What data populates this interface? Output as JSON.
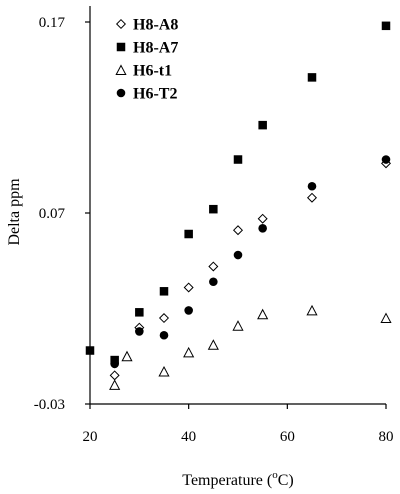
{
  "chart_data": {
    "type": "scatter",
    "title": "",
    "xlabel": "Temperature (°C)",
    "ylabel": "Delta ppm",
    "xlim": [
      20,
      80
    ],
    "ylim": [
      -0.03,
      0.17
    ],
    "xticks": [
      20,
      40,
      60,
      80
    ],
    "yticks": [
      -0.03,
      0.07,
      0.17
    ],
    "x_tick_labels": [
      "20",
      "40",
      "60",
      "80"
    ],
    "y_tick_labels": [
      "-0.03",
      "0.07",
      "0.17"
    ],
    "grid": false,
    "legend_position": "top-left",
    "series": [
      {
        "name": "H8-A8",
        "marker": "open-diamond",
        "points": [
          [
            25,
            -0.015
          ],
          [
            30,
            0.01
          ],
          [
            35,
            0.015
          ],
          [
            40,
            0.031
          ],
          [
            45,
            0.042
          ],
          [
            50,
            0.061
          ],
          [
            55,
            0.067
          ],
          [
            65,
            0.078
          ],
          [
            80,
            0.096
          ]
        ]
      },
      {
        "name": "H8-A7",
        "marker": "filled-square",
        "points": [
          [
            20,
            -0.002
          ],
          [
            25,
            -0.007
          ],
          [
            30,
            0.018
          ],
          [
            35,
            0.029
          ],
          [
            40,
            0.059
          ],
          [
            45,
            0.072
          ],
          [
            50,
            0.098
          ],
          [
            55,
            0.116
          ],
          [
            65,
            0.141
          ],
          [
            80,
            0.168
          ]
        ]
      },
      {
        "name": "H6-t1",
        "marker": "open-triangle",
        "points": [
          [
            25,
            -0.02
          ],
          [
            27.5,
            -0.005
          ],
          [
            35,
            -0.013
          ],
          [
            40,
            -0.003
          ],
          [
            45,
            0.001
          ],
          [
            50,
            0.011
          ],
          [
            55,
            0.017
          ],
          [
            65,
            0.019
          ],
          [
            80,
            0.015
          ]
        ]
      },
      {
        "name": "H6-T2",
        "marker": "filled-circle",
        "points": [
          [
            25,
            -0.009
          ],
          [
            30,
            0.008
          ],
          [
            35,
            0.006
          ],
          [
            40,
            0.019
          ],
          [
            45,
            0.034
          ],
          [
            50,
            0.048
          ],
          [
            55,
            0.062
          ],
          [
            65,
            0.084
          ],
          [
            80,
            0.098
          ]
        ]
      }
    ]
  },
  "axes": {
    "xlabel_text": "Temperature (",
    "xlabel_superscript": "o",
    "xlabel_unit": "C)",
    "ylabel": "Delta ppm"
  }
}
